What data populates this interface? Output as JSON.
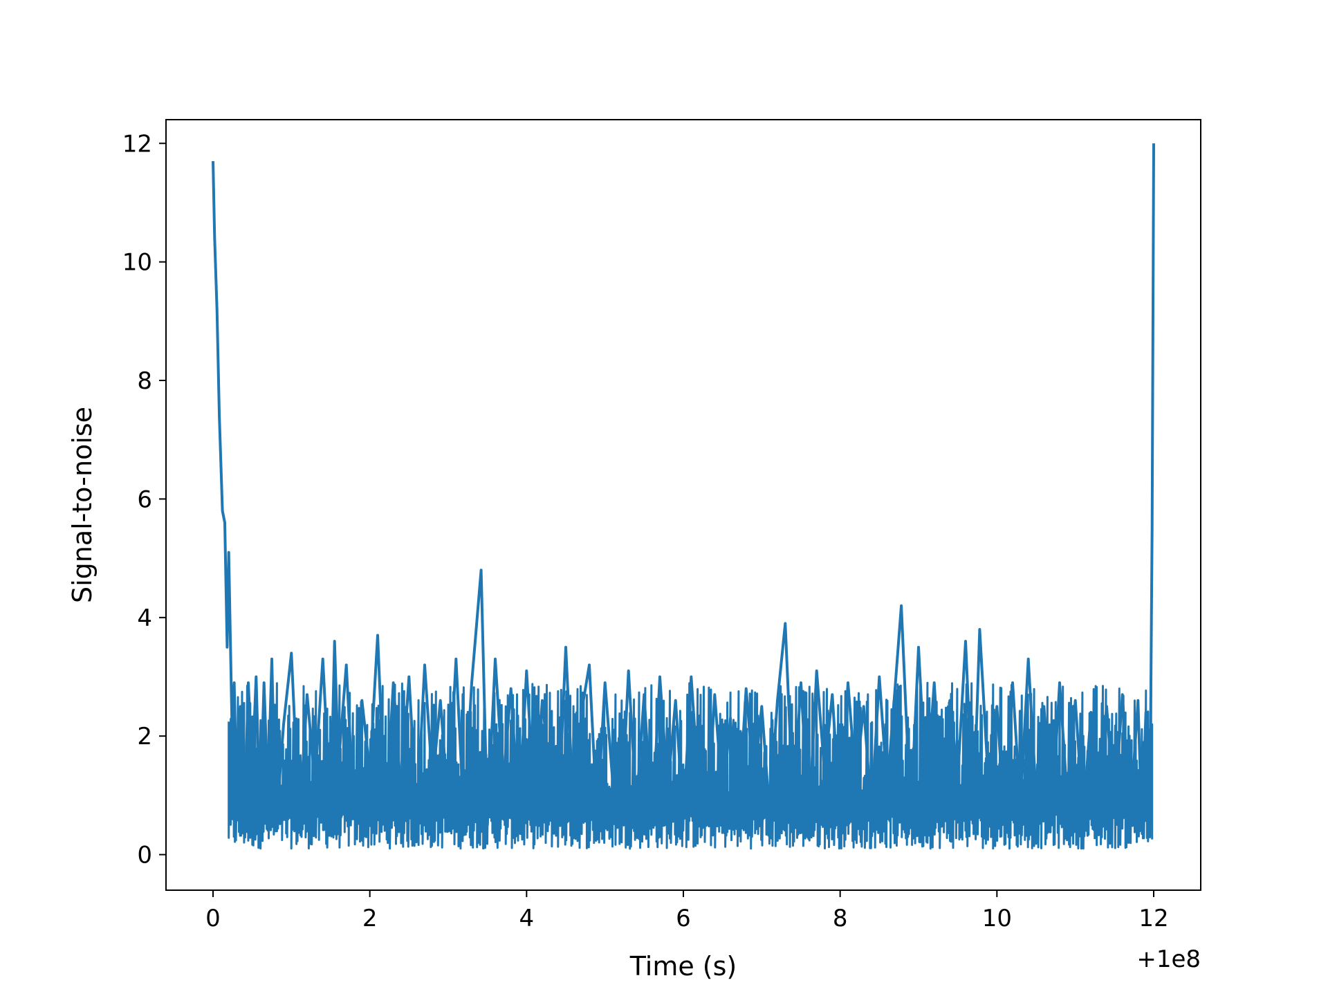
{
  "chart_data": {
    "type": "line",
    "title": "",
    "xlabel": "Time (s)",
    "ylabel": "Signal-to-noise",
    "x_offset_label": "+1e8",
    "xlim": [
      -0.6,
      12.6
    ],
    "ylim": [
      -0.6,
      12.4
    ],
    "xticks": [
      0,
      2,
      4,
      6,
      8,
      10,
      12
    ],
    "xtick_labels": [
      "0",
      "2",
      "4",
      "6",
      "8",
      "10",
      "12"
    ],
    "yticks": [
      0,
      2,
      4,
      6,
      8,
      10,
      12
    ],
    "ytick_labels": [
      "0",
      "2",
      "4",
      "6",
      "8",
      "10",
      "12"
    ],
    "grid": false,
    "legend": "none",
    "colors": {
      "series": "#1f77b4",
      "axes": "#000000"
    },
    "series": [
      {
        "name": "",
        "x": [
          0.0,
          0.02,
          0.05,
          0.08,
          0.12,
          0.15,
          0.18,
          0.2,
          0.24,
          0.27,
          0.3,
          0.35,
          0.4,
          0.45,
          0.5,
          0.55,
          0.6,
          0.65,
          0.7,
          0.75,
          0.8,
          0.9,
          1.0,
          1.1,
          1.2,
          1.3,
          1.4,
          1.5,
          1.55,
          1.6,
          1.7,
          1.8,
          1.9,
          2.0,
          2.1,
          2.2,
          2.3,
          2.4,
          2.5,
          2.6,
          2.7,
          2.8,
          2.9,
          3.0,
          3.1,
          3.2,
          3.3,
          3.42,
          3.5,
          3.6,
          3.7,
          3.8,
          3.9,
          4.0,
          4.1,
          4.2,
          4.3,
          4.4,
          4.5,
          4.6,
          4.7,
          4.8,
          4.9,
          5.0,
          5.1,
          5.2,
          5.3,
          5.4,
          5.5,
          5.6,
          5.7,
          5.8,
          5.9,
          6.0,
          6.1,
          6.2,
          6.3,
          6.4,
          6.5,
          6.6,
          6.7,
          6.8,
          6.9,
          7.0,
          7.1,
          7.2,
          7.3,
          7.4,
          7.5,
          7.6,
          7.7,
          7.8,
          7.9,
          8.0,
          8.1,
          8.2,
          8.3,
          8.4,
          8.5,
          8.6,
          8.7,
          8.78,
          8.9,
          9.0,
          9.1,
          9.2,
          9.3,
          9.4,
          9.5,
          9.6,
          9.7,
          9.78,
          9.9,
          10.0,
          10.1,
          10.2,
          10.3,
          10.4,
          10.5,
          10.6,
          10.7,
          10.8,
          10.9,
          11.0,
          11.1,
          11.2,
          11.3,
          11.4,
          11.5,
          11.6,
          11.7,
          11.8,
          11.85,
          11.9,
          11.95,
          11.98,
          12.0
        ],
        "y": [
          11.7,
          10.4,
          9.2,
          7.4,
          5.8,
          5.6,
          3.5,
          5.1,
          2.3,
          2.9,
          1.1,
          2.5,
          0.5,
          2.9,
          1.4,
          3.0,
          0.6,
          2.9,
          1.0,
          3.3,
          0.4,
          2.2,
          3.4,
          0.5,
          2.7,
          1.2,
          3.3,
          0.7,
          3.6,
          1.5,
          3.2,
          0.6,
          2.6,
          1.4,
          3.7,
          0.5,
          2.9,
          1.0,
          3.0,
          0.6,
          3.2,
          1.2,
          2.6,
          0.8,
          3.3,
          0.6,
          2.9,
          4.8,
          0.5,
          3.3,
          1.2,
          2.8,
          0.6,
          3.1,
          0.8,
          2.6,
          1.3,
          0.5,
          3.5,
          0.7,
          2.4,
          3.2,
          0.6,
          2.9,
          1.2,
          0.4,
          3.1,
          0.8,
          2.7,
          0.5,
          3.0,
          1.1,
          2.6,
          0.6,
          3.0,
          1.0,
          0.5,
          2.7,
          0.9,
          2.3,
          0.6,
          2.8,
          1.2,
          2.5,
          0.7,
          2.6,
          3.9,
          0.8,
          2.9,
          0.5,
          3.1,
          1.4,
          2.7,
          0.6,
          2.9,
          1.2,
          2.5,
          0.7,
          3.0,
          1.1,
          2.8,
          4.2,
          0.6,
          3.5,
          1.0,
          2.9,
          0.7,
          2.6,
          1.3,
          3.6,
          0.6,
          3.8,
          1.0,
          2.5,
          0.5,
          2.9,
          0.8,
          3.3,
          1.0,
          2.5,
          0.6,
          2.9,
          0.9,
          2.6,
          0.6,
          2.4,
          1.0,
          2.5,
          0.7,
          2.7,
          0.6,
          2.6,
          0.4,
          2.4,
          0.3,
          5.5,
          12.0
        ]
      }
    ]
  }
}
